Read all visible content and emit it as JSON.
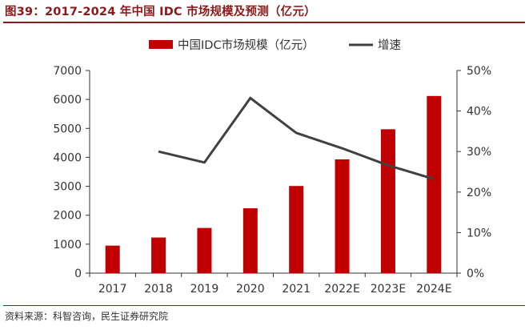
{
  "figure_title": "图39：2017-2024 年中国 IDC 市场规模及预测（亿元）",
  "source_note": "资料来源：科智咨询，民生证券研究院",
  "colors": {
    "bar": "#c00000",
    "line": "#404040",
    "title": "#8b1a1a",
    "axis": "#333333"
  },
  "chart_data": {
    "type": "bar",
    "title": "",
    "xlabel": "",
    "ylabel": "",
    "categories": [
      "2017",
      "2018",
      "2019",
      "2020",
      "2021",
      "2022E",
      "2023E",
      "2024E"
    ],
    "series": [
      {
        "name": "中国IDC市场规模（亿元）",
        "type": "bar",
        "axis": "left",
        "values": [
          950,
          1230,
          1560,
          2240,
          3010,
          3930,
          4970,
          6120
        ]
      },
      {
        "name": "增速",
        "type": "line",
        "axis": "right",
        "values": [
          null,
          0.3,
          0.273,
          0.432,
          0.346,
          0.308,
          0.266,
          0.232
        ]
      }
    ],
    "ylim": [
      0,
      7000
    ],
    "y_ticks": [
      "0",
      "1000",
      "2000",
      "3000",
      "4000",
      "5000",
      "6000",
      "7000"
    ],
    "y2lim": [
      0,
      0.5
    ],
    "y2_ticks": [
      "0%",
      "10%",
      "20%",
      "30%",
      "40%",
      "50%"
    ],
    "grid": false,
    "legend_position": "top"
  }
}
